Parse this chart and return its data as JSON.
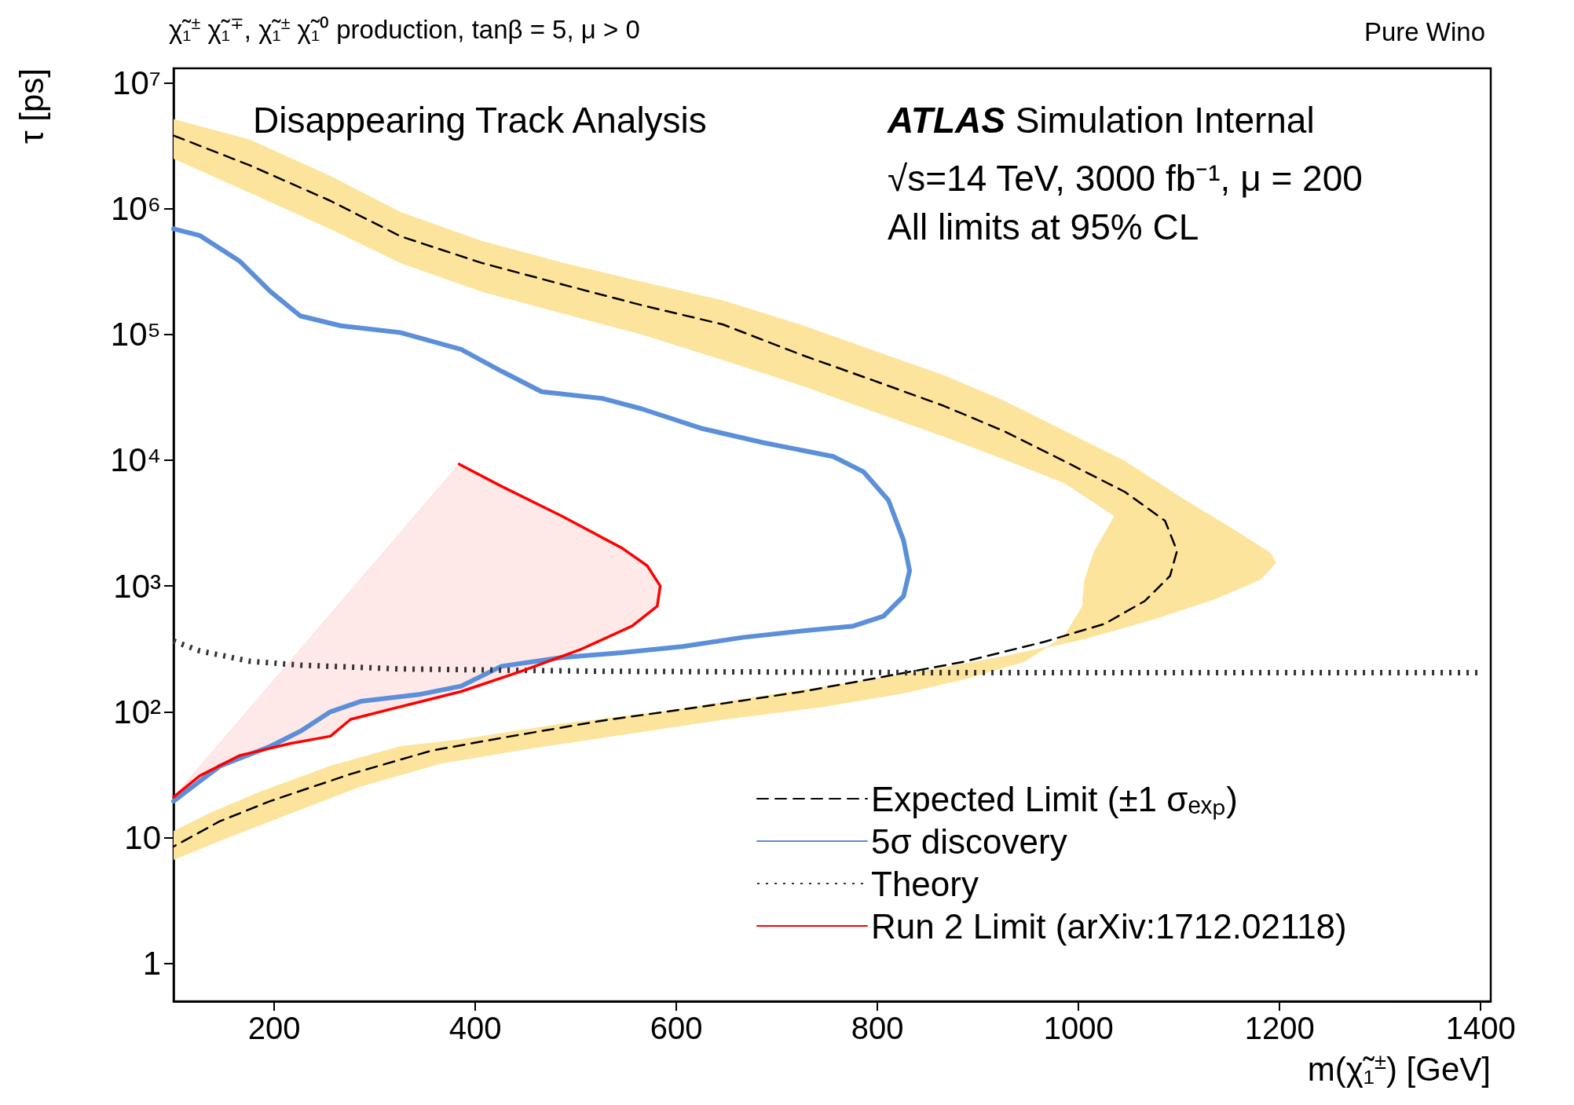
{
  "chart_data": {
    "type": "line",
    "title": "χ̃₁$^{±}$ χ̃₁$^{∓}$, χ̃₁$^{±}$ χ̃₁⁰ production, tanβ = 5, μ > 0",
    "subtitle": "Pure Wino",
    "xlabel": "m(χ̃₁$^{±}$) [GeV]",
    "ylabel": "τ [ps]",
    "annotations": [
      "Disappearing Track Analysis",
      "ATLAS Simulation Internal",
      "√s=14 TeV, 3000 fb⁻¹, μ = 200",
      "All limits at 95% CL"
    ],
    "xlim": [
      100,
      1410
    ],
    "ylim": [
      0.5,
      13000000
    ],
    "xticks": [
      200,
      400,
      600,
      800,
      1000,
      1200,
      1400
    ],
    "yticks": [
      1,
      10,
      {
        "value": 100,
        "label": "10²"
      },
      {
        "value": 1000,
        "label": "10³"
      },
      {
        "value": 10000,
        "label": "10⁴"
      },
      {
        "value": 100000,
        "label": "10⁵"
      },
      {
        "value": 1000000,
        "label": "10⁶"
      },
      {
        "value": 10000000,
        "label": "10⁷"
      }
    ],
    "log": "y",
    "grid": false,
    "legend": "bottom right",
    "marker": "none",
    "series": [
      {
        "type": "area",
        "color": "#fde49c",
        "x": [
          100,
          176,
          256,
          326,
          406,
          486,
          566,
          646,
          726,
          796,
          866,
          926,
          986,
          1046,
          1106,
          1156,
          1191,
          1196,
          1181,
          1136,
          1076,
          1006,
          926,
          846,
          766,
          686,
          586,
          486,
          386,
          326,
          256,
          186,
          136,
          100,
          100,
          156,
          216,
          286,
          366,
          446,
          546,
          646,
          746,
          826,
          886,
          946,
          986,
          1004,
          1006,
          1016,
          1036,
          986,
          926,
          866,
          796,
          726,
          646,
          566,
          486,
          406,
          326,
          256,
          176,
          100
        ],
        "values": [
          5100000,
          3500000,
          1800000,
          930000,
          550000,
          370000,
          260000,
          185000,
          117000,
          74000,
          47000,
          29500,
          17000,
          9800,
          4800,
          2750,
          1820,
          1520,
          1130,
          790,
          550,
          380,
          275,
          210,
          166,
          133,
          100,
          80,
          60,
          53,
          37,
          23,
          15.6,
          11.2,
          6.7,
          10.2,
          15.6,
          25.6,
          39,
          50,
          66,
          87,
          110,
          141,
          182,
          251,
          400,
          690,
          1100,
          1900,
          3600,
          6600,
          10200,
          15500,
          24500,
          39000,
          63000,
          100000,
          148000,
          220000,
          370000,
          690000,
          1340000,
          2500000
        ]
      },
      {
        "name": "Expected Limit (±1 σₑₓₚ)",
        "color": "#000000",
        "line_style": "dashed",
        "x": [
          100,
          176,
          256,
          326,
          406,
          486,
          566,
          646,
          726,
          796,
          866,
          926,
          986,
          1046,
          1086,
          1098,
          1091,
          1066,
          1026,
          966,
          886,
          806,
          726,
          626,
          526,
          426,
          356,
          276,
          196,
          146,
          100
        ],
        "values": [
          3800000,
          2200000,
          1150000,
          600000,
          370000,
          250000,
          170000,
          120000,
          68000,
          43000,
          27000,
          17000,
          9800,
          5600,
          3300,
          1900,
          1200,
          760,
          500,
          360,
          250,
          190,
          145,
          110,
          85,
          62,
          49,
          32,
          19.5,
          13.5,
          8.5
        ]
      },
      {
        "name": "5σ discovery",
        "color": "#5b8fd9",
        "line_style": "solid",
        "x": [
          100,
          126,
          166,
          196,
          226,
          266,
          326,
          386,
          426,
          466,
          526,
          566,
          626,
          686,
          756,
          786,
          811,
          826,
          832,
          826,
          806,
          776,
          726,
          666,
          606,
          546,
          486,
          426,
          386,
          346,
          286,
          256,
          226,
          196,
          146,
          100
        ],
        "values": [
          690000,
          610000,
          380000,
          220000,
          140000,
          117000,
          103000,
          76000,
          51000,
          35000,
          31000,
          25500,
          17800,
          13800,
          10700,
          8100,
          4800,
          2300,
          1320,
          830,
          575,
          480,
          440,
          390,
          330,
          295,
          270,
          230,
          160,
          138,
          121,
          100,
          70,
          53,
          37,
          19.5
        ]
      },
      {
        "name": "Theory",
        "color": "#333333",
        "line_style": "dotted",
        "x": [
          100,
          126,
          176,
          226,
          326,
          526,
          826,
          1400
        ],
        "values": [
          365,
          305,
          252,
          235,
          219,
          210,
          205,
          205
        ]
      },
      {
        "name": "Run 2 Limit (arXiv:1712.02118)",
        "color": "#ff0000",
        "line_style": "solid",
        "x": [
          384,
          426,
          486,
          546,
          571,
          584,
          581,
          556,
          506,
          446,
          386,
          326,
          276,
          256,
          216,
          166,
          126,
          100
        ],
        "values": [
          9300,
          6200,
          3600,
          2000,
          1450,
          1000,
          690,
          480,
          316,
          210,
          145,
          110,
          87,
          64,
          56,
          45,
          31,
          21
        ]
      }
    ]
  }
}
